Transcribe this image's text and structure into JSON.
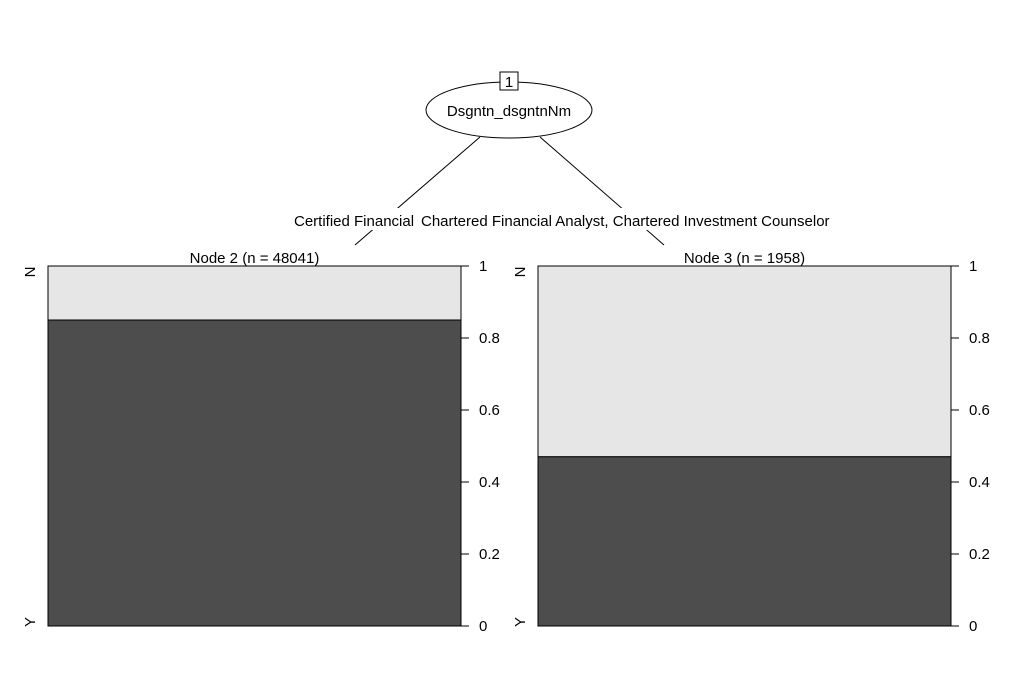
{
  "chart_data": {
    "type": "decision-tree",
    "root": {
      "id": "1",
      "label": "Dsgntn_dsgntnNm"
    },
    "edge_labels": {
      "left": "Certified Financial",
      "right": "Chartered Financial Analyst, Chartered Investment Counselor"
    },
    "terminal_nodes": [
      {
        "title": "Node 2 (n = 48041)",
        "categories": [
          "N",
          "Y"
        ],
        "proportions": {
          "N": 0.15,
          "Y": 0.85
        }
      },
      {
        "title": "Node 3 (n = 1958)",
        "categories": [
          "N",
          "Y"
        ],
        "proportions": {
          "N": 0.53,
          "Y": 0.47
        }
      }
    ],
    "y_axis": {
      "ticks": [
        0,
        0.2,
        0.4,
        0.6,
        0.8,
        1
      ],
      "tick_labels": [
        "0",
        "0.2",
        "0.4",
        "0.6",
        "0.8",
        "1"
      ],
      "ylim": [
        0,
        1
      ]
    },
    "colors": {
      "Y": "#4d4d4d",
      "N": "#e6e6e6",
      "outline": "#000000"
    }
  }
}
